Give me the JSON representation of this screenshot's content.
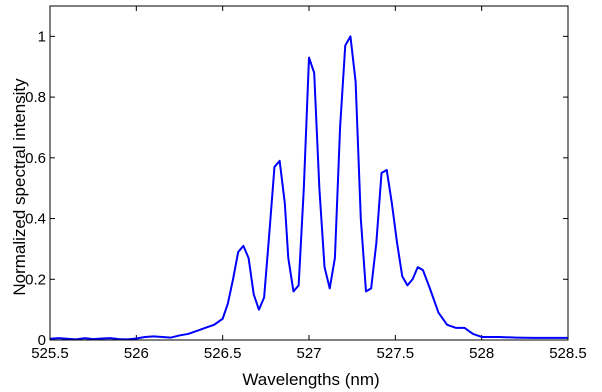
{
  "chart_data": {
    "type": "line",
    "title": "",
    "xlabel": "Wavelengths (nm)",
    "ylabel": "Normalized spectral intensity",
    "xlim": [
      525.5,
      528.5
    ],
    "ylim": [
      0,
      1.1
    ],
    "xticks": [
      525.5,
      526,
      526.5,
      527,
      527.5,
      528,
      528.5
    ],
    "xtick_labels": [
      "525.5",
      "526",
      "526.5",
      "527",
      "527.5",
      "528",
      "528.5"
    ],
    "yticks": [
      0,
      0.2,
      0.4,
      0.6,
      0.8,
      1
    ],
    "ytick_labels": [
      "0",
      "0.2",
      "0.4",
      "0.6",
      "0.8",
      "1"
    ],
    "grid": true,
    "legend": "none",
    "line_color": "#0000ff",
    "series": [
      {
        "x": [
          525.5,
          525.55,
          525.6,
          525.65,
          525.7,
          525.75,
          525.8,
          525.85,
          525.9,
          525.95,
          526.0,
          526.05,
          526.1,
          526.15,
          526.2,
          526.25,
          526.3,
          526.35,
          526.4,
          526.45,
          526.5,
          526.53,
          526.56,
          526.59,
          526.62,
          526.65,
          526.68,
          526.71,
          526.74,
          526.77,
          526.8,
          526.83,
          526.86,
          526.88,
          526.91,
          526.94,
          526.97,
          527.0,
          527.03,
          527.06,
          527.09,
          527.12,
          527.15,
          527.18,
          527.21,
          527.24,
          527.27,
          527.3,
          527.33,
          527.36,
          527.39,
          527.42,
          527.45,
          527.48,
          527.51,
          527.54,
          527.57,
          527.6,
          527.63,
          527.66,
          527.7,
          527.75,
          527.8,
          527.85,
          527.9,
          527.95,
          528.0,
          528.1,
          528.2,
          528.3,
          528.4,
          528.5
        ],
        "y": [
          0.004,
          0.006,
          0.004,
          0.002,
          0.006,
          0.003,
          0.005,
          0.006,
          0.003,
          0.002,
          0.005,
          0.01,
          0.012,
          0.01,
          0.008,
          0.015,
          0.02,
          0.03,
          0.04,
          0.05,
          0.07,
          0.12,
          0.2,
          0.29,
          0.31,
          0.27,
          0.15,
          0.1,
          0.14,
          0.35,
          0.57,
          0.59,
          0.45,
          0.27,
          0.16,
          0.18,
          0.5,
          0.93,
          0.88,
          0.5,
          0.24,
          0.17,
          0.27,
          0.7,
          0.97,
          1.0,
          0.85,
          0.4,
          0.16,
          0.17,
          0.32,
          0.55,
          0.56,
          0.45,
          0.32,
          0.21,
          0.18,
          0.2,
          0.24,
          0.23,
          0.17,
          0.09,
          0.05,
          0.04,
          0.04,
          0.02,
          0.01,
          0.01,
          0.008,
          0.007,
          0.007,
          0.007
        ]
      }
    ]
  }
}
